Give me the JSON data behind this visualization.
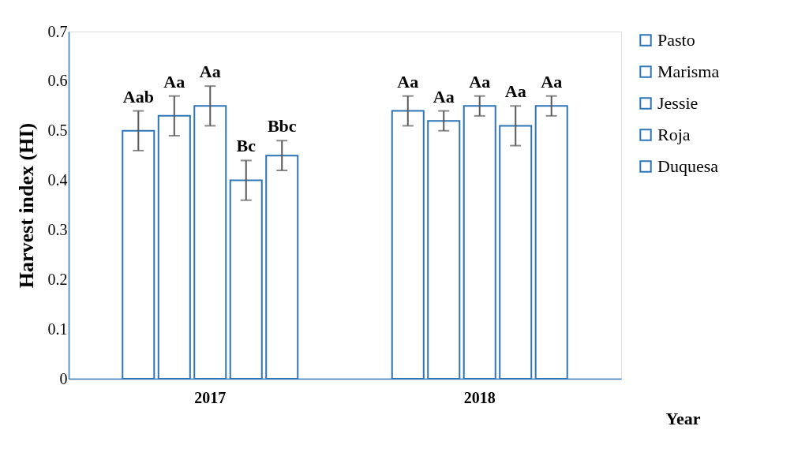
{
  "chart_data": {
    "type": "bar",
    "xlabel": "Year",
    "ylabel": "Harvest index (HI)",
    "categories": [
      "2017",
      "2018"
    ],
    "series": [
      {
        "name": "Pasto",
        "color": "#2e75b6",
        "values": [
          0.5,
          0.54
        ],
        "errors": [
          0.04,
          0.03
        ],
        "value_labels": [
          "Aab",
          "Aa"
        ]
      },
      {
        "name": "Marisma",
        "color": "#2e75b6",
        "values": [
          0.53,
          0.52
        ],
        "errors": [
          0.04,
          0.02
        ],
        "value_labels": [
          "Aa",
          "Aa"
        ]
      },
      {
        "name": "Jessie",
        "color": "#2e75b6",
        "values": [
          0.55,
          0.55
        ],
        "errors": [
          0.04,
          0.02
        ],
        "value_labels": [
          "Aa",
          "Aa"
        ]
      },
      {
        "name": "Roja",
        "color": "#2e75b6",
        "values": [
          0.4,
          0.51
        ],
        "errors": [
          0.04,
          0.04
        ],
        "value_labels": [
          "Bc",
          "Aa"
        ]
      },
      {
        "name": "Duquesa",
        "color": "#2e75b6",
        "values": [
          0.45,
          0.55
        ],
        "errors": [
          0.03,
          0.02
        ],
        "value_labels": [
          "Bbc",
          "Aa"
        ]
      }
    ],
    "ylim": [
      0,
      0.7
    ],
    "yticks": [
      0,
      0.1,
      0.2,
      0.3,
      0.4,
      0.5,
      0.6,
      0.7
    ],
    "grid": false,
    "legend": "right"
  }
}
